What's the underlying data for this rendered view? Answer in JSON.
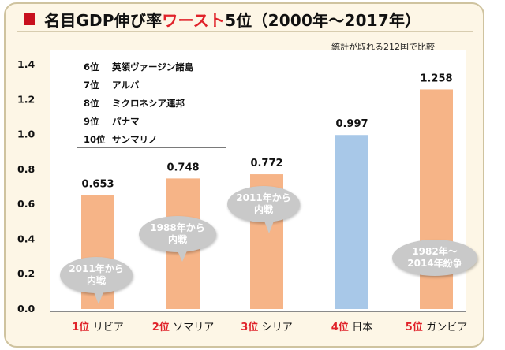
{
  "title": {
    "prefix": "名目GDP伸び率",
    "highlight": "ワースト",
    "suffix": "5位（2000年～2017年）"
  },
  "note": "統計が取れる212国で比較",
  "colors": {
    "bar": "#f6b487",
    "highlight_bar": "#a8c8e8",
    "rank_red": "#e0222a",
    "title_red": "#e0222a",
    "callout": "#c9c9c9"
  },
  "legend": [
    {
      "rank": "6位",
      "name": "英領ヴァージン諸島"
    },
    {
      "rank": "7位",
      "name": "アルバ"
    },
    {
      "rank": "8位",
      "name": "ミクロネシア連邦"
    },
    {
      "rank": "9位",
      "name": "パナマ"
    },
    {
      "rank": "10位",
      "name": "サンマリノ"
    }
  ],
  "callouts": [
    {
      "text": "2011年から\n内戦"
    },
    {
      "text": "1988年から\n内戦"
    },
    {
      "text": "2011年から\n内戦"
    },
    {
      "text": "1982年～\n2014年紛争"
    }
  ],
  "chart_data": {
    "type": "bar",
    "title": "名目GDP伸び率ワースト5位（2000年～2017年）",
    "categories": [
      {
        "rank": "1位",
        "country": "リビア"
      },
      {
        "rank": "2位",
        "country": "ソマリア"
      },
      {
        "rank": "3位",
        "country": "シリア"
      },
      {
        "rank": "4位",
        "country": "日本"
      },
      {
        "rank": "5位",
        "country": "ガンビア"
      }
    ],
    "values": [
      0.653,
      0.748,
      0.772,
      0.997,
      1.258
    ],
    "value_labels": [
      "0.653",
      "0.748",
      "0.772",
      "0.997",
      "1.258"
    ],
    "highlight_index": 3,
    "ylim": [
      0,
      1.4
    ],
    "yticks": [
      "0.0",
      "0.2",
      "0.4",
      "0.6",
      "0.8",
      "1.0",
      "1.2",
      "1.4"
    ],
    "grid": false
  }
}
